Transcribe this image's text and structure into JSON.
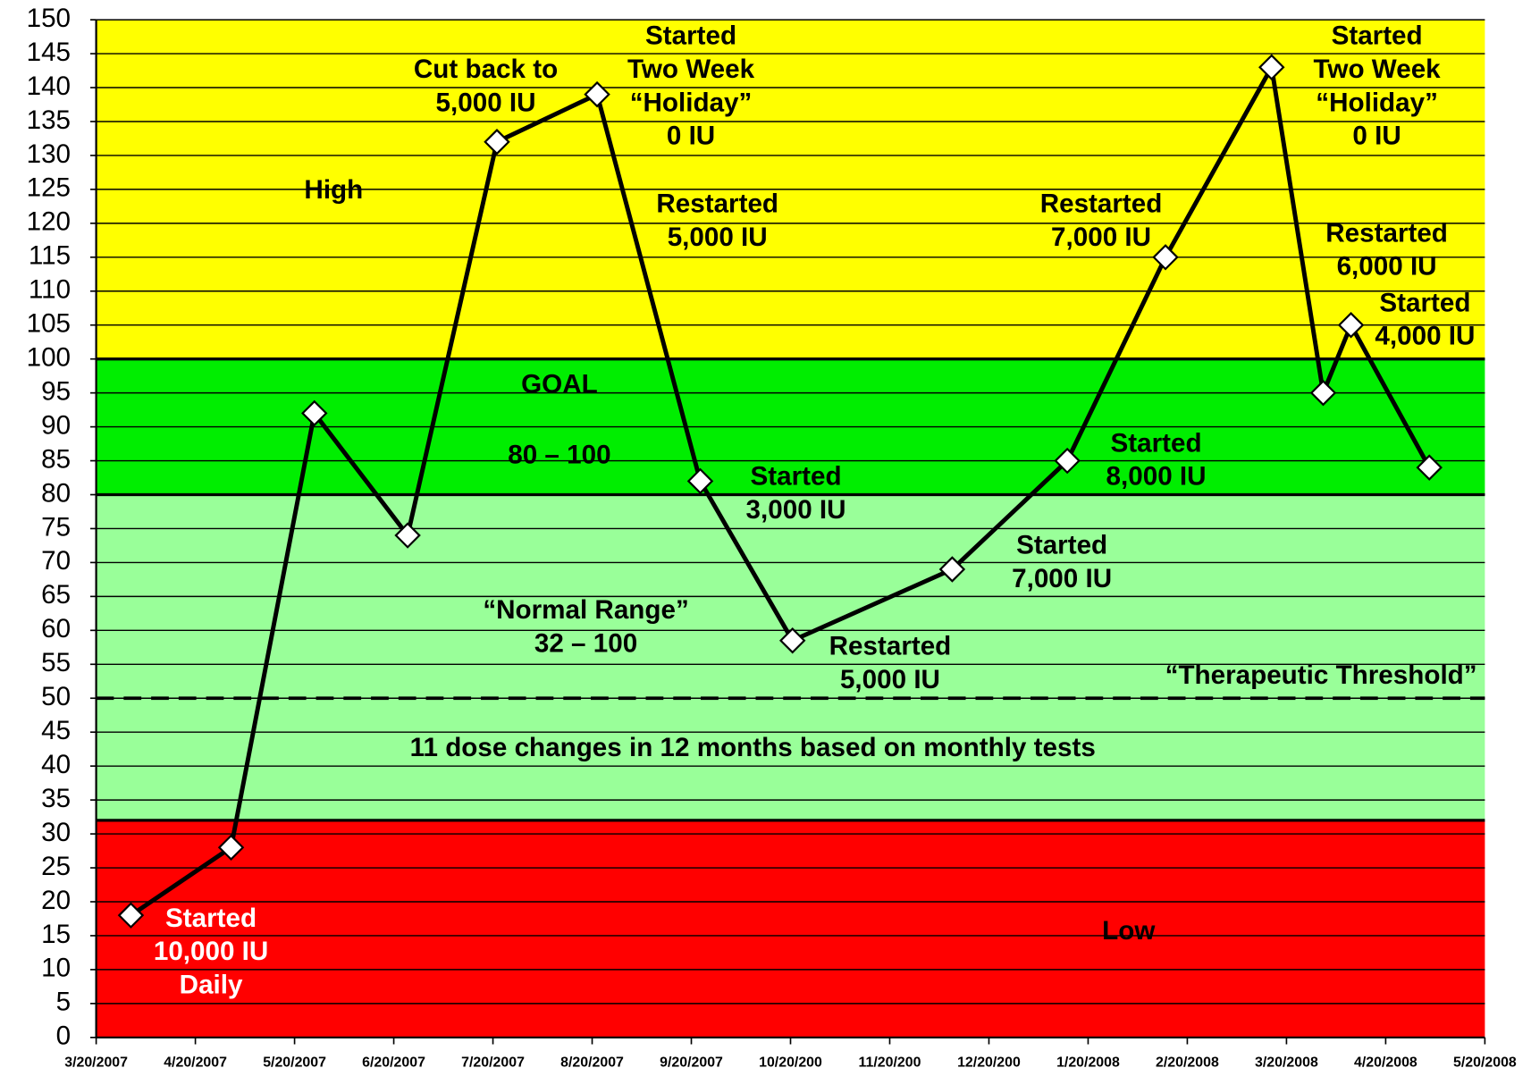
{
  "chart_data": {
    "type": "line",
    "x": [
      0.35,
      1.36,
      2.2,
      3.14,
      4.04,
      5.05,
      6.09,
      7.02,
      8.63,
      9.79,
      10.78,
      11.85,
      12.37,
      12.65,
      13.44
    ],
    "series": [
      {
        "color": "#000000",
        "values": [
          18,
          28,
          92,
          74,
          132,
          139,
          82,
          58.5,
          69,
          85,
          115,
          143,
          95,
          105,
          84
        ]
      }
    ],
    "xlim": [
      0,
      14
    ],
    "xticks": [
      {
        "value": 0,
        "label": "3/20/2007"
      },
      {
        "value": 1,
        "label": "4/20/2007"
      },
      {
        "value": 2,
        "label": "5/20/2007"
      },
      {
        "value": 3,
        "label": "6/20/2007"
      },
      {
        "value": 4,
        "label": "7/20/2007"
      },
      {
        "value": 5,
        "label": "8/20/2007"
      },
      {
        "value": 6,
        "label": "9/20/2007"
      },
      {
        "value": 7,
        "label": "10/20/200"
      },
      {
        "value": 8,
        "label": "11/20/200"
      },
      {
        "value": 9,
        "label": "12/20/200"
      },
      {
        "value": 10,
        "label": "1/20/2008"
      },
      {
        "value": 11,
        "label": "2/20/2008"
      },
      {
        "value": 12,
        "label": "3/20/2008"
      },
      {
        "value": 13,
        "label": "4/20/2008"
      },
      {
        "value": 14,
        "label": "5/20/2008"
      }
    ],
    "ylim": [
      0,
      150
    ],
    "yticks": [
      0,
      5,
      10,
      15,
      20,
      25,
      30,
      35,
      40,
      45,
      50,
      55,
      60,
      65,
      70,
      75,
      80,
      85,
      90,
      95,
      100,
      105,
      110,
      115,
      120,
      125,
      130,
      135,
      140,
      145,
      150
    ],
    "grid": true,
    "bands": [
      {
        "from": 0,
        "to": 32,
        "color": "#ff0000"
      },
      {
        "from": 32,
        "to": 80,
        "color": "#99ff99"
      },
      {
        "from": 80,
        "to": 100,
        "color": "#00ee00"
      },
      {
        "from": 100,
        "to": 150,
        "color": "#ffff00"
      }
    ],
    "threshold": {
      "value": 50,
      "label": "“Therapeutic Threshold”"
    },
    "annotations": [
      [
        "High"
      ],
      [
        "Low"
      ],
      [
        "GOAL",
        "80 – 100"
      ],
      [
        "“Normal Range”",
        "32 – 100"
      ],
      [
        "11 dose changes in 12 months based on monthly tests"
      ],
      [
        "Started",
        "10,000 IU",
        "Daily"
      ],
      [
        "Cut back to",
        "5,000 IU"
      ],
      [
        "Started",
        "Two Week",
        "“Holiday”",
        "0 IU"
      ],
      [
        "Restarted",
        "5,000 IU"
      ],
      [
        "Started",
        "3,000 IU"
      ],
      [
        "Restarted",
        "5,000 IU"
      ],
      [
        "Started",
        "7,000 IU"
      ],
      [
        "Started",
        "8,000 IU"
      ],
      [
        "Restarted",
        "7,000 IU"
      ],
      [
        "Started",
        "Two Week",
        "“Holiday”",
        "0 IU"
      ],
      [
        "Restarted",
        "6,000 IU"
      ],
      [
        "Started",
        "4,000 IU"
      ]
    ]
  }
}
